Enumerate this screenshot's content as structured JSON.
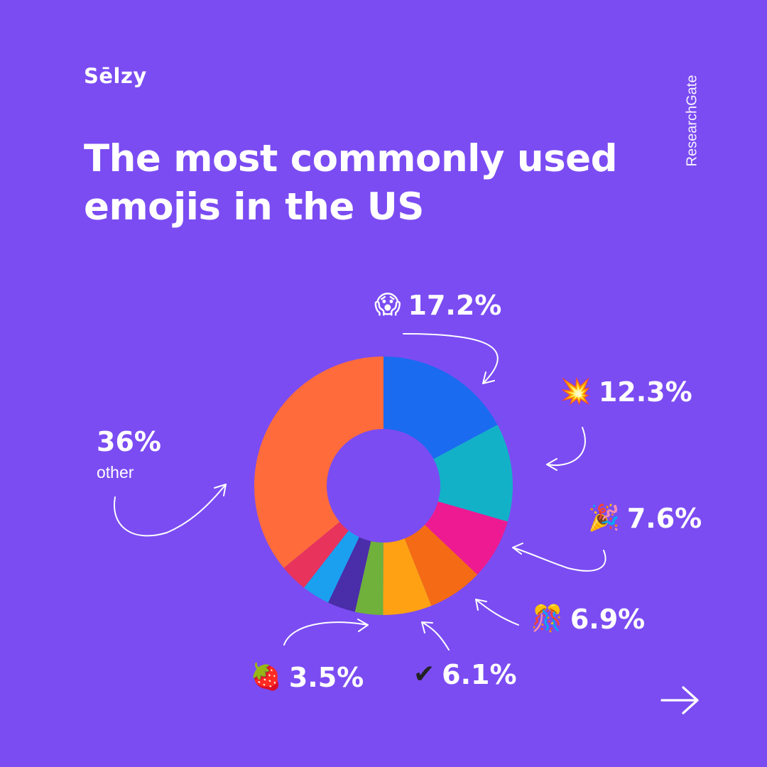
{
  "brand": {
    "logo": "Sēlzy"
  },
  "source": "ResearchGate",
  "title_lines": [
    "The most commonly used",
    "emojis in the US"
  ],
  "colors": {
    "background": "#7B4CF2",
    "text": "#FFFFFF"
  },
  "chart_data": {
    "type": "pie",
    "donut": true,
    "start_angle_deg": 0,
    "direction": "clockwise",
    "slices": [
      {
        "emoji": "😱",
        "label": "17.2%",
        "value": 17.2,
        "color": "#1A6BF0"
      },
      {
        "emoji": "💥",
        "label": "12.3%",
        "value": 12.3,
        "color": "#13B1C8"
      },
      {
        "emoji": "🎉",
        "label": "7.6%",
        "value": 7.6,
        "color": "#EE1A92"
      },
      {
        "emoji": "🎊",
        "label": "6.9%",
        "value": 6.9,
        "color": "#F56A14"
      },
      {
        "emoji": "✔",
        "label": "6.1%",
        "value": 6.1,
        "color": "#FFA112"
      },
      {
        "emoji": "🍓",
        "label": "3.5%",
        "value": 3.5,
        "color": "#6FB13B"
      },
      {
        "value": 3.5,
        "color": "#4A2DA8"
      },
      {
        "value": 3.5,
        "color": "#1AA0EF"
      },
      {
        "value": 3.5,
        "color": "#E8335C"
      },
      {
        "label": "36%",
        "sublabel": "other",
        "value": 36,
        "color": "#FF6B3B"
      }
    ]
  },
  "nav": {
    "next_icon": "arrow-right-icon"
  }
}
